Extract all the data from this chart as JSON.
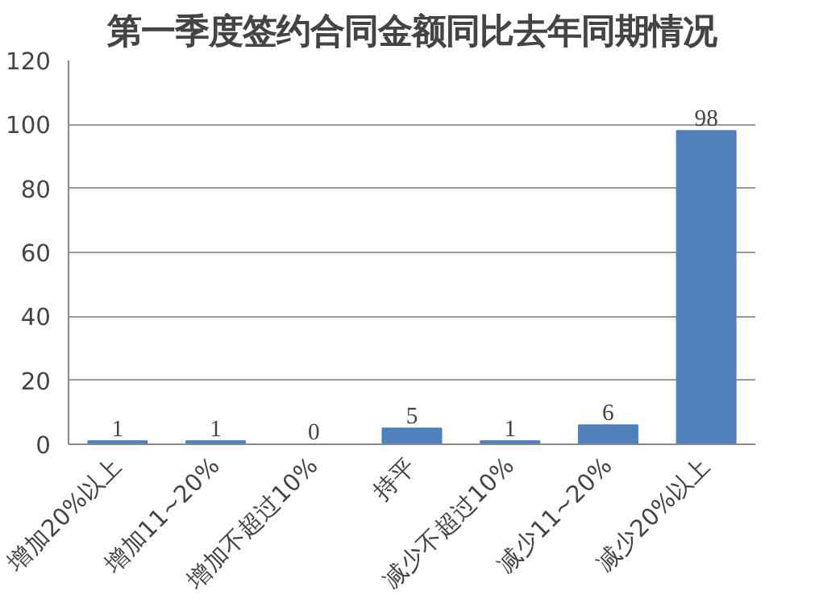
{
  "chart_data": {
    "type": "bar",
    "title": "第一季度签约合同金额同比去年同期情况",
    "categories": [
      "增加20%以上",
      "增加11~20%",
      "增加不超过10%",
      "持平",
      "减少不超过10%",
      "减少11~20%",
      "减少20%以上"
    ],
    "values": [
      1,
      1,
      0,
      5,
      1,
      6,
      98
    ],
    "color": "#4f81bd",
    "ylim": [
      0,
      120
    ],
    "yticks": [
      0,
      20,
      40,
      60,
      80,
      100,
      120
    ],
    "grid": "y",
    "data_labels": true
  }
}
